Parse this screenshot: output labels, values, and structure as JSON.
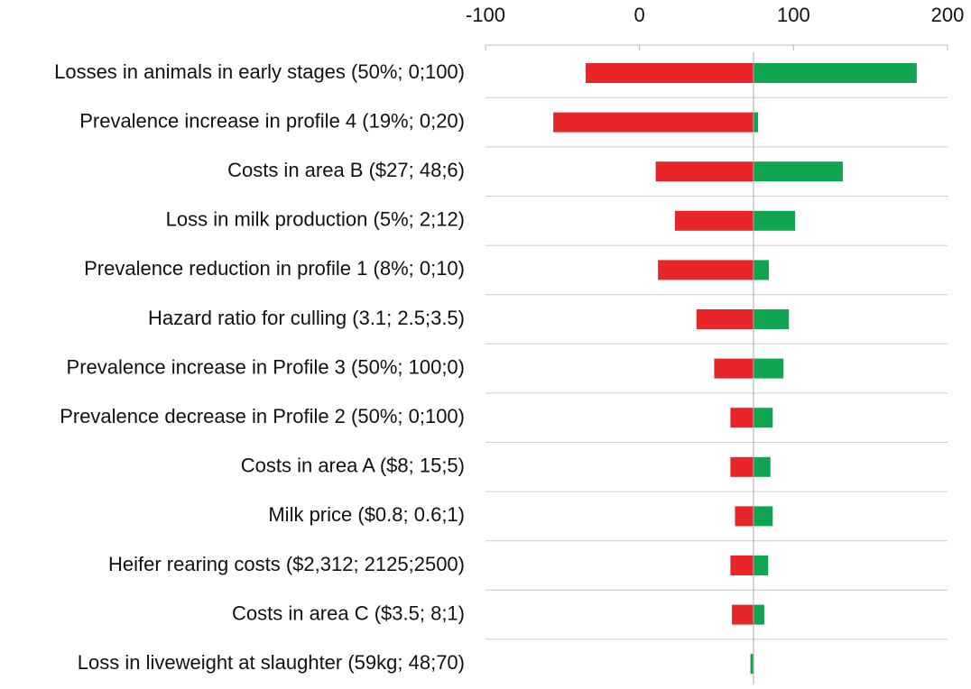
{
  "chart_data": {
    "type": "bar",
    "orientation": "horizontal",
    "categories": [
      "Losses in animals in early stages (50%; 0;100)",
      "Prevalence increase in profile 4 (19%; 0;20)",
      "Costs in area B ($27; 48;6)",
      "Loss in milk production (5%; 2;12)",
      "Prevalence reduction in profile 1 (8%; 0;10)",
      "Hazard ratio for culling (3.1; 2.5;3.5)",
      "Prevalence increase in Profile 3 (50%; 100;0)",
      "Prevalence decrease in Profile 2 (50%; 0;100)",
      "Costs in area A ($8; 15;5)",
      "Milk price ($0.8; 0.6;1)",
      "Heifer rearing costs ($2,312; 2125;2500)",
      "Costs in area C ($3.5; 8;1)",
      "Loss in liveweight at slaughter (59kg; 48;70)"
    ],
    "base": 74,
    "series": [
      {
        "color": "#e8262a",
        "values": [
          -35,
          -56,
          10.5,
          23,
          12,
          37,
          48.5,
          59,
          59,
          62,
          59,
          60,
          74
        ]
      },
      {
        "color": "#10a550",
        "values": [
          180,
          77,
          132,
          101,
          84,
          97,
          93.5,
          86.5,
          85,
          86.5,
          83.5,
          81,
          72
        ]
      }
    ],
    "xlim": [
      -100,
      200
    ],
    "xticks": [
      -100,
      0,
      100,
      200
    ],
    "grid": true
  }
}
